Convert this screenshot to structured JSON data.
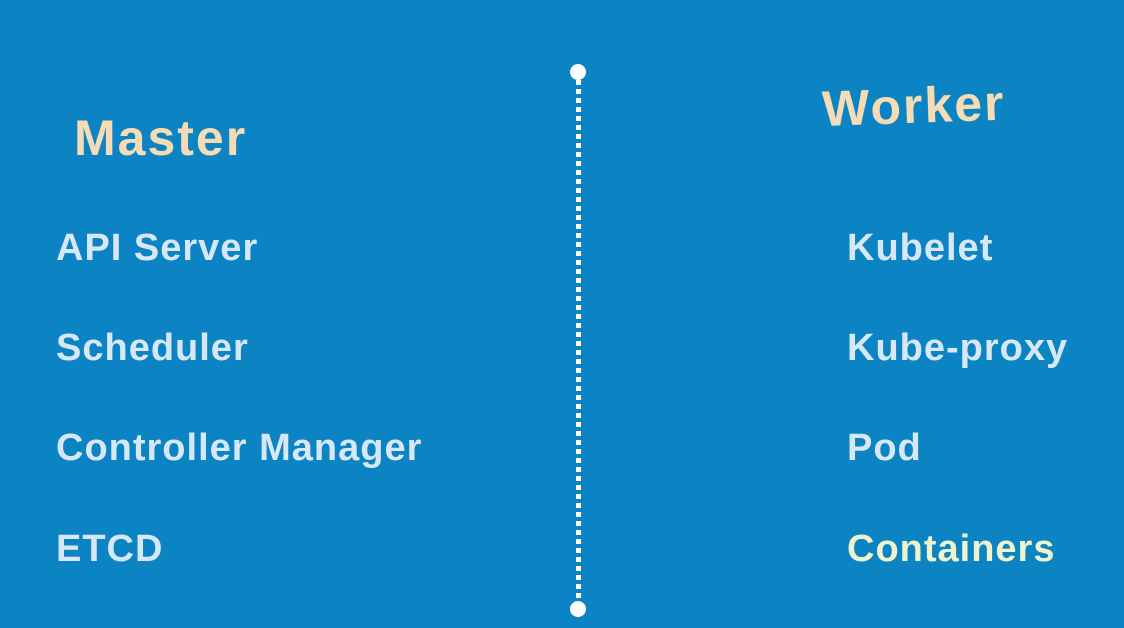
{
  "canvas": {
    "background_color": "#0c83c2",
    "divider_color": "#ffffff"
  },
  "columns": {
    "master": {
      "title": "Master",
      "title_color": "#f6dcb4",
      "items": [
        {
          "label": "API Server",
          "color": "#d6e8f6"
        },
        {
          "label": "Scheduler",
          "color": "#d6e8f6"
        },
        {
          "label": "Controller Manager",
          "color": "#d6e8f6"
        },
        {
          "label": "ETCD",
          "color": "#d6e8f6"
        }
      ]
    },
    "worker": {
      "title": "Worker",
      "title_color": "#f6dcb4",
      "items": [
        {
          "label": "Kubelet",
          "color": "#d6e8f6"
        },
        {
          "label": "Kube-proxy",
          "color": "#d6e8f6"
        },
        {
          "label": "Pod",
          "color": "#d6e8f6"
        },
        {
          "label": "Containers",
          "color": "#eef3cd"
        }
      ]
    }
  }
}
